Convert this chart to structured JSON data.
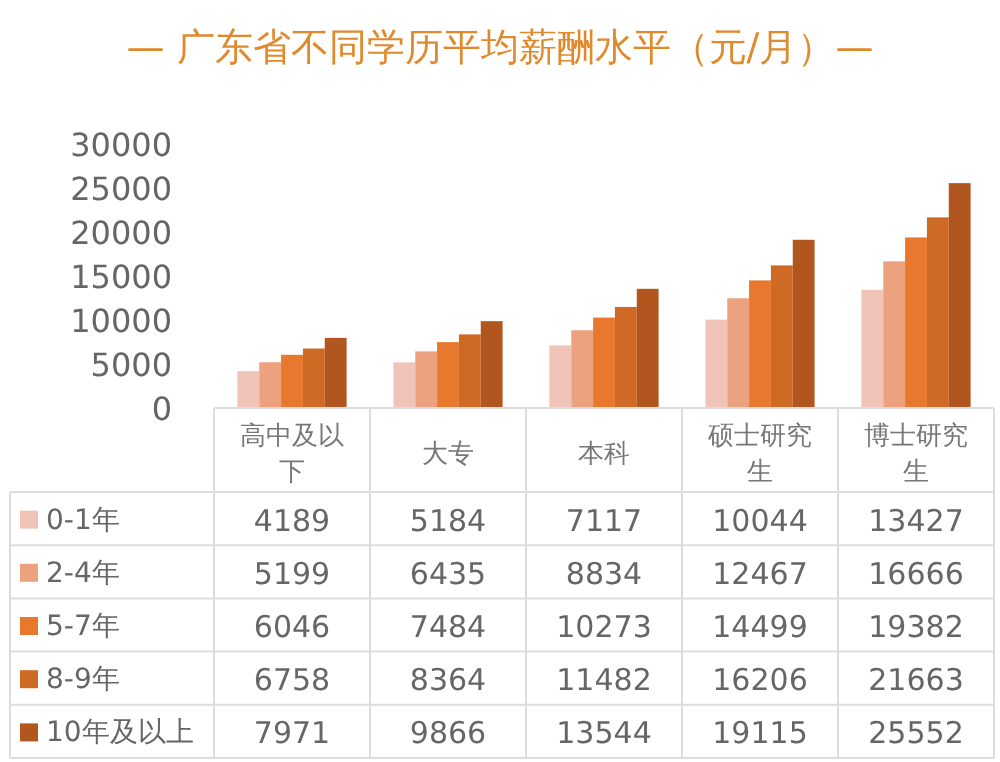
{
  "chart_data": {
    "type": "bar",
    "title": "— 广东省不同学历平均薪酬水平（元/月）—",
    "categories": [
      "高中及以下",
      "大专",
      "本科",
      "硕士研究生",
      "博士研究生"
    ],
    "series": [
      {
        "name": "0-1年",
        "color": "#f0c4b8",
        "values": [
          4189,
          5184,
          7117,
          10044,
          13427
        ]
      },
      {
        "name": "2-4年",
        "color": "#eda27f",
        "values": [
          5199,
          6435,
          8834,
          12467,
          16666
        ]
      },
      {
        "name": "5-7年",
        "color": "#e8782e",
        "values": [
          6046,
          7484,
          10273,
          14499,
          19382
        ]
      },
      {
        "name": "8-9年",
        "color": "#cf6a25",
        "values": [
          6758,
          8364,
          11482,
          16206,
          21663
        ]
      },
      {
        "name": "10年及以上",
        "color": "#b0561e",
        "values": [
          7971,
          9866,
          13544,
          19115,
          25552
        ]
      }
    ],
    "ylim": [
      0,
      30000
    ],
    "yticks": [
      0,
      5000,
      10000,
      15000,
      20000,
      25000,
      30000
    ],
    "data_labels": true,
    "legend": "bottom left",
    "grid": false
  }
}
